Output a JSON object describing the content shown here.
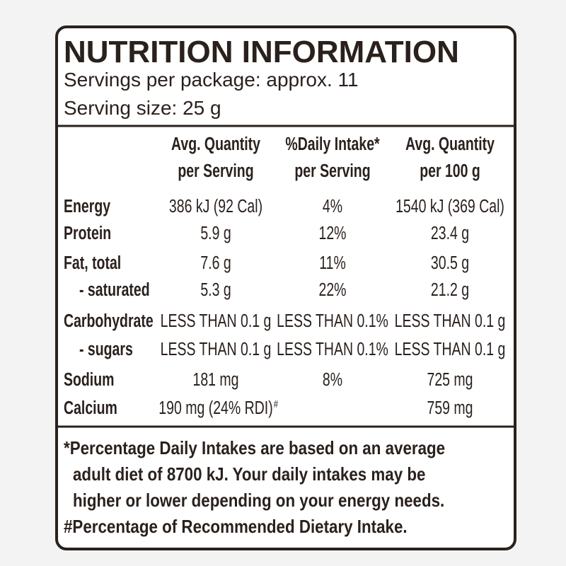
{
  "title": "NUTRITION INFORMATION",
  "servings_per_package": "Servings per package: approx. 11",
  "serving_size": "Serving size: 25 g",
  "table": {
    "columns": [
      [
        "Avg. Quantity",
        "per Serving"
      ],
      [
        "%Daily Intake*",
        "per Serving"
      ],
      [
        "Avg. Quantity",
        "per 100 g"
      ]
    ],
    "rows": [
      {
        "label": "Energy",
        "per_serving": "386 kJ (92 Cal)",
        "daily_intake": "4%",
        "per_100g": "1540 kJ (369 Cal)"
      },
      {
        "label": "Protein",
        "per_serving": "5.9 g",
        "daily_intake": "12%",
        "per_100g": "23.4 g"
      },
      {
        "label": "Fat, total",
        "per_serving": "7.6 g",
        "daily_intake": "11%",
        "per_100g": "30.5 g"
      },
      {
        "label": "- saturated",
        "per_serving": "5.3 g",
        "daily_intake": "22%",
        "per_100g": "21.2 g"
      },
      {
        "label": "Carbohydrate",
        "per_serving": "LESS THAN 0.1 g",
        "daily_intake": "LESS THAN 0.1%",
        "per_100g": "LESS THAN 0.1 g"
      },
      {
        "label": "- sugars",
        "per_serving": "LESS THAN 0.1 g",
        "daily_intake": "LESS THAN 0.1%",
        "per_100g": "LESS THAN 0.1 g"
      },
      {
        "label": "Sodium",
        "per_serving": "181 mg",
        "daily_intake": "8%",
        "per_100g": "725 mg"
      },
      {
        "label": "Calcium",
        "per_serving": "190 mg (24% RDI)",
        "per_serving_note": "#",
        "per_100g": "759 mg"
      }
    ]
  },
  "footnotes": [
    "*Percentage Daily Intakes are based on an average",
    "adult diet of 8700 kJ. Your daily intakes may be",
    "higher or lower depending on your energy needs.",
    "#Percentage of Recommended Dietary Intake."
  ]
}
